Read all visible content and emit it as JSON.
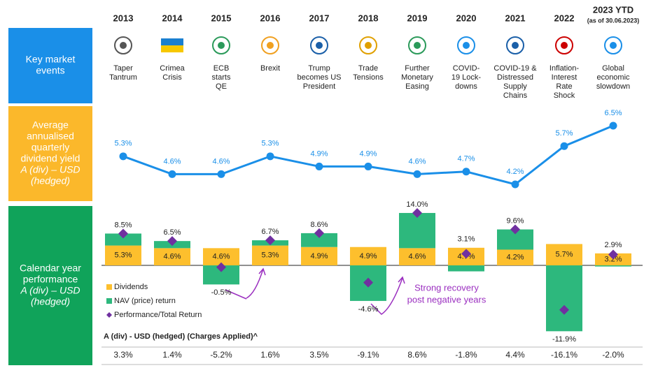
{
  "years": [
    "2013",
    "2014",
    "2015",
    "2016",
    "2017",
    "2018",
    "2019",
    "2020",
    "2021",
    "2022",
    "2023 YTD"
  ],
  "ytd_note": "(as of 30.06.2023)",
  "row_labels": {
    "events": [
      "Key market",
      "events"
    ],
    "yield": [
      "Average",
      "annualised",
      "quarterly",
      "dividend yield",
      "A (div) – USD",
      "(hedged)"
    ],
    "performance": [
      "Calendar year",
      "performance",
      "A (div) – USD",
      "(hedged)"
    ]
  },
  "events": [
    [
      "Taper",
      "Tantrum"
    ],
    [
      "Crimea",
      "Crisis"
    ],
    [
      "ECB",
      "starts",
      "QE"
    ],
    [
      "Brexit"
    ],
    [
      "Trump",
      "becomes US",
      "President"
    ],
    [
      "Trade",
      "Tensions"
    ],
    [
      "Further",
      "Monetary",
      "Easing"
    ],
    [
      "COVID-",
      "19 Lock-",
      "downs"
    ],
    [
      "COVID-19 &",
      "Distressed",
      "Supply",
      "Chains"
    ],
    [
      "Inflation-",
      "Interest",
      "Rate",
      "Shock"
    ],
    [
      "Global",
      "economic",
      "slowdown"
    ]
  ],
  "chart_data": [
    {
      "type": "line",
      "color": "#1a8fe8",
      "values": [
        5.3,
        4.6,
        4.6,
        5.3,
        4.9,
        4.9,
        4.6,
        4.7,
        4.2,
        5.7,
        6.5
      ],
      "value_labels": [
        "5.3%",
        "4.6%",
        "4.6%",
        "5.3%",
        "4.9%",
        "4.9%",
        "4.6%",
        "4.7%",
        "4.2%",
        "5.7%",
        "6.5%"
      ]
    },
    {
      "type": "bar",
      "stacked": true,
      "series": [
        {
          "name": "Dividends",
          "color": "#fdbf2d",
          "values": [
            5.3,
            4.6,
            4.6,
            5.3,
            4.9,
            4.9,
            4.6,
            4.7,
            4.2,
            5.7,
            3.2
          ],
          "value_labels": [
            "5.3%",
            "4.6%",
            "4.6%",
            "5.3%",
            "4.9%",
            "4.9%",
            "4.6%",
            "4.7%",
            "4.2%",
            "5.7%",
            "3.2%"
          ]
        },
        {
          "name": "NAV (price) return",
          "color": "#2db87d",
          "values": [
            3.2,
            1.9,
            -5.1,
            1.4,
            3.7,
            -9.5,
            9.4,
            -1.6,
            5.4,
            -17.6,
            -0.3
          ]
        },
        {
          "name": "Performance/Total Return",
          "color": "#7030a0",
          "values": [
            8.5,
            6.5,
            -0.5,
            6.7,
            8.6,
            -4.6,
            14.0,
            3.1,
            9.6,
            -11.9,
            2.9
          ],
          "value_labels": [
            "8.5%",
            "6.5%",
            "-0.5%",
            "6.7%",
            "8.6%",
            "-4.6%",
            "14.0%",
            "3.1%",
            "9.6%",
            "-11.9%",
            "2.9%"
          ]
        }
      ],
      "annotation": [
        "Strong recovery",
        "post negative years"
      ]
    }
  ],
  "table": {
    "label": "A (div) - USD (hedged) (Charges Applied)^",
    "row": [
      "3.3%",
      "1.4%",
      "-5.2%",
      "1.6%",
      "3.5%",
      "-9.1%",
      "8.6%",
      "-1.8%",
      "4.4%",
      "-16.1%",
      "-2.0%"
    ]
  }
}
